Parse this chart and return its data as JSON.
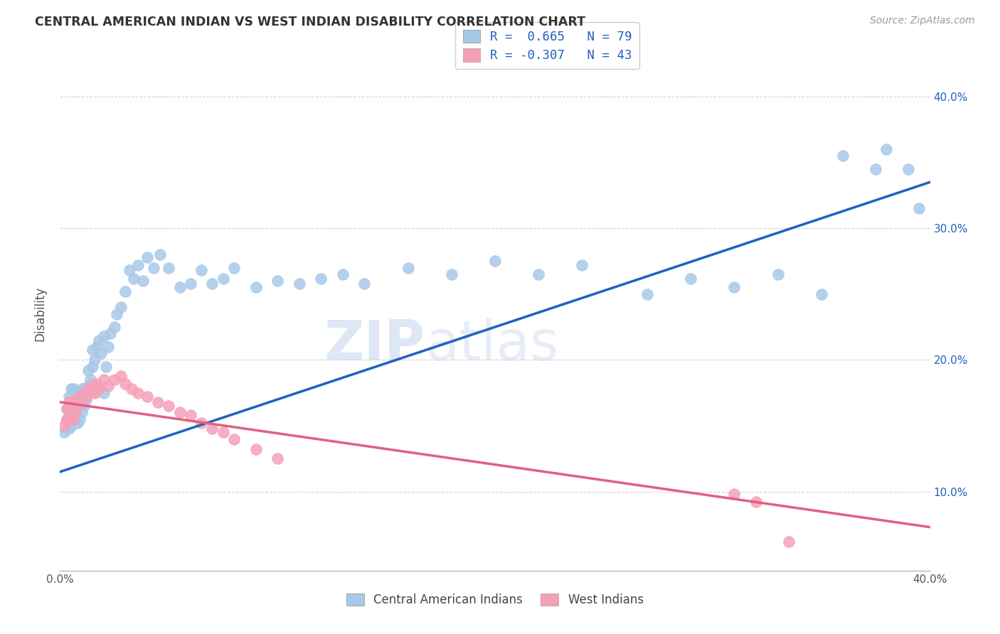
{
  "title": "CENTRAL AMERICAN INDIAN VS WEST INDIAN DISABILITY CORRELATION CHART",
  "source": "Source: ZipAtlas.com",
  "ylabel": "Disability",
  "x_min": 0.0,
  "x_max": 0.4,
  "y_min": 0.04,
  "y_max": 0.43,
  "r_blue": 0.665,
  "n_blue": 79,
  "r_pink": -0.307,
  "n_pink": 43,
  "blue_color": "#A8C8E8",
  "pink_color": "#F4A0B8",
  "blue_line_color": "#2060C0",
  "pink_line_color": "#E06080",
  "watermark_zip": "ZIP",
  "watermark_atlas": "atlas",
  "legend_label_blue": "Central American Indians",
  "legend_label_pink": "West Indians",
  "blue_line_x0": 0.0,
  "blue_line_y0": 0.115,
  "blue_line_x1": 0.4,
  "blue_line_y1": 0.335,
  "pink_line_x0": 0.0,
  "pink_line_y0": 0.168,
  "pink_line_x1": 0.4,
  "pink_line_y1": 0.073,
  "blue_x": [
    0.002,
    0.003,
    0.003,
    0.004,
    0.004,
    0.004,
    0.005,
    0.005,
    0.005,
    0.006,
    0.006,
    0.006,
    0.007,
    0.007,
    0.008,
    0.008,
    0.009,
    0.009,
    0.01,
    0.01,
    0.011,
    0.011,
    0.012,
    0.013,
    0.013,
    0.014,
    0.015,
    0.015,
    0.016,
    0.017,
    0.018,
    0.019,
    0.02,
    0.021,
    0.022,
    0.023,
    0.025,
    0.026,
    0.028,
    0.03,
    0.032,
    0.034,
    0.036,
    0.038,
    0.04,
    0.043,
    0.046,
    0.05,
    0.055,
    0.06,
    0.065,
    0.07,
    0.075,
    0.08,
    0.09,
    0.1,
    0.11,
    0.12,
    0.13,
    0.14,
    0.16,
    0.18,
    0.2,
    0.22,
    0.24,
    0.27,
    0.29,
    0.31,
    0.33,
    0.35,
    0.36,
    0.375,
    0.38,
    0.39,
    0.395,
    0.005,
    0.01,
    0.015,
    0.02
  ],
  "blue_y": [
    0.145,
    0.155,
    0.163,
    0.148,
    0.16,
    0.172,
    0.15,
    0.158,
    0.168,
    0.155,
    0.165,
    0.178,
    0.158,
    0.168,
    0.152,
    0.162,
    0.155,
    0.17,
    0.16,
    0.175,
    0.165,
    0.178,
    0.17,
    0.18,
    0.192,
    0.185,
    0.195,
    0.208,
    0.2,
    0.21,
    0.215,
    0.205,
    0.218,
    0.195,
    0.21,
    0.22,
    0.225,
    0.235,
    0.24,
    0.252,
    0.268,
    0.262,
    0.272,
    0.26,
    0.278,
    0.27,
    0.28,
    0.27,
    0.255,
    0.258,
    0.268,
    0.258,
    0.262,
    0.27,
    0.255,
    0.26,
    0.258,
    0.262,
    0.265,
    0.258,
    0.27,
    0.265,
    0.275,
    0.265,
    0.272,
    0.25,
    0.262,
    0.255,
    0.265,
    0.25,
    0.355,
    0.345,
    0.36,
    0.345,
    0.315,
    0.178,
    0.178,
    0.182,
    0.175
  ],
  "pink_x": [
    0.002,
    0.003,
    0.003,
    0.004,
    0.004,
    0.005,
    0.005,
    0.006,
    0.006,
    0.007,
    0.007,
    0.008,
    0.009,
    0.01,
    0.011,
    0.012,
    0.013,
    0.014,
    0.015,
    0.016,
    0.017,
    0.018,
    0.02,
    0.022,
    0.025,
    0.028,
    0.03,
    0.033,
    0.036,
    0.04,
    0.045,
    0.05,
    0.055,
    0.06,
    0.065,
    0.07,
    0.075,
    0.08,
    0.09,
    0.1,
    0.31,
    0.32,
    0.335
  ],
  "pink_y": [
    0.15,
    0.155,
    0.163,
    0.155,
    0.168,
    0.158,
    0.168,
    0.155,
    0.165,
    0.16,
    0.17,
    0.165,
    0.172,
    0.168,
    0.175,
    0.172,
    0.178,
    0.175,
    0.18,
    0.175,
    0.182,
    0.178,
    0.185,
    0.18,
    0.185,
    0.188,
    0.182,
    0.178,
    0.175,
    0.172,
    0.168,
    0.165,
    0.16,
    0.158,
    0.152,
    0.148,
    0.145,
    0.14,
    0.132,
    0.125,
    0.098,
    0.092,
    0.062
  ]
}
